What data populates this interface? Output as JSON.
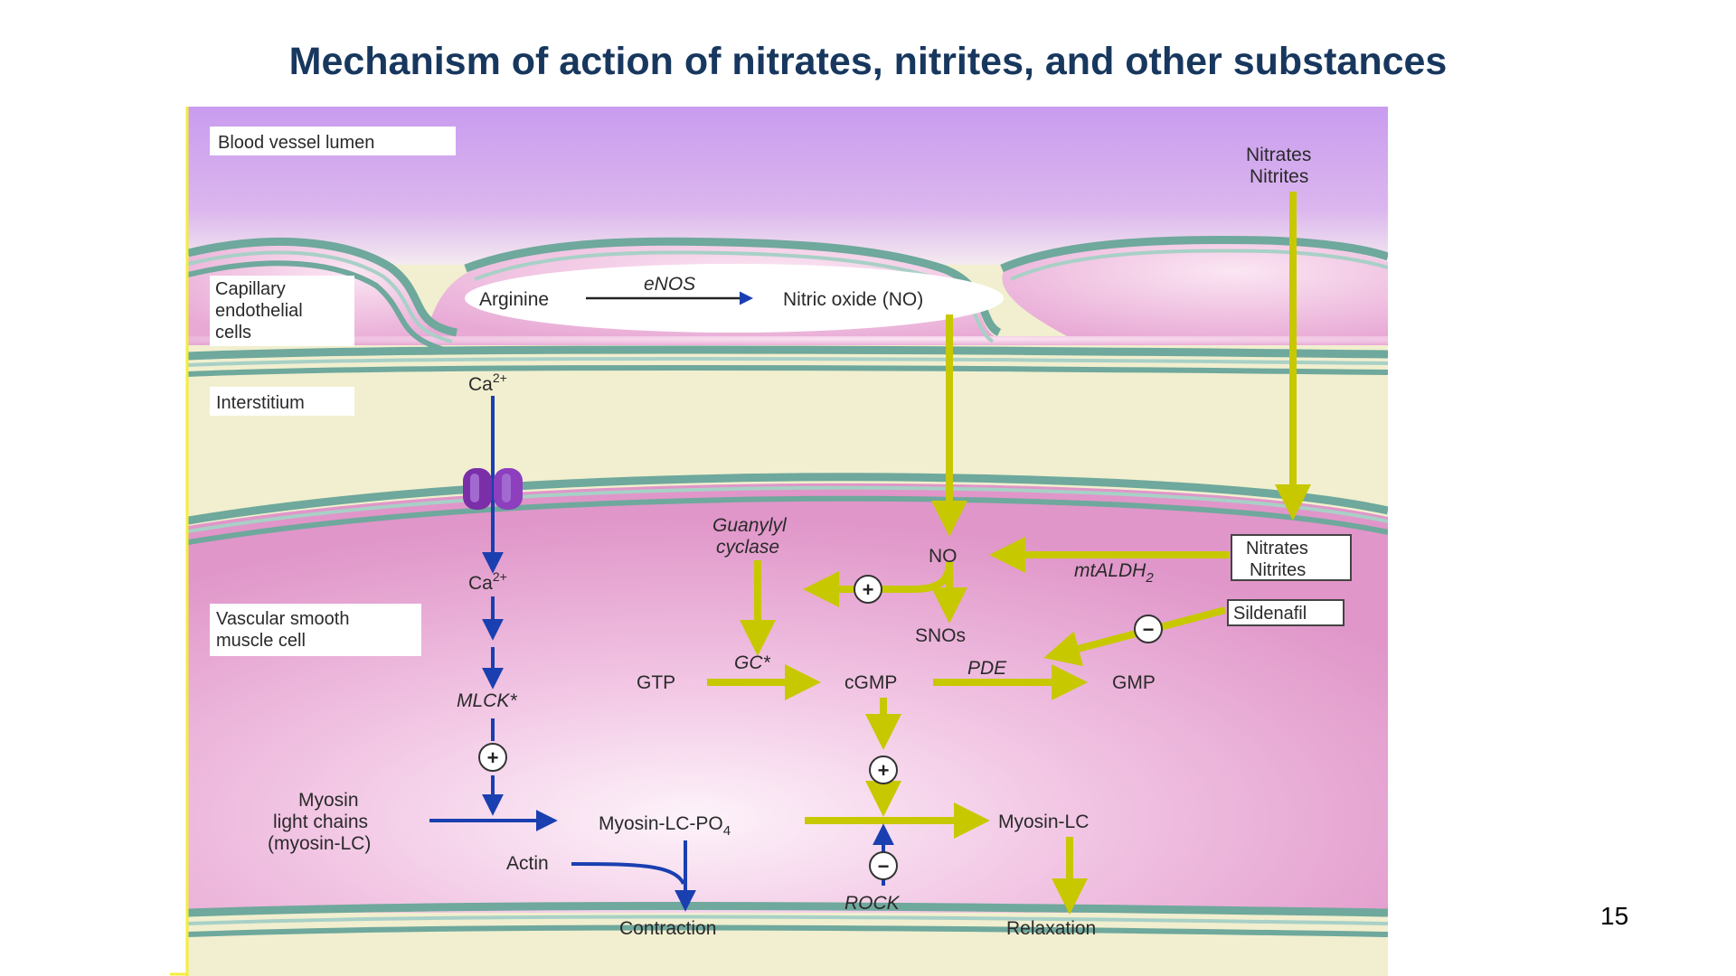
{
  "slide": {
    "title": "Mechanism of action of nitrates, nitrites, and other substances",
    "page_number": "15"
  },
  "regions": {
    "lumen": "Blood vessel lumen",
    "endothelial_1": "Capillary",
    "endothelial_2": "endothelial",
    "endothelial_3": "cells",
    "interstitium": "Interstitium",
    "vsmc_1": "Vascular smooth",
    "vsmc_2": "muscle cell"
  },
  "labels": {
    "arginine": "Arginine",
    "enos": "eNOS",
    "nitric_oxide": "Nitric oxide (NO)",
    "nitrates_top": "Nitrates",
    "nitrites_top": "Nitrites",
    "ca_base": "Ca",
    "ca_charge": "2+",
    "no": "NO",
    "mtaldh_base": "mtALDH",
    "mtaldh_sub": "2",
    "nitrates_box": "Nitrates",
    "nitrites_box": "Nitrites",
    "sildenafil": "Sildenafil",
    "guanylyl": "Guanylyl",
    "cyclase": "cyclase",
    "snos": "SNOs",
    "gtp": "GTP",
    "gc_star": "GC*",
    "cgmp": "cGMP",
    "pde": "PDE",
    "gmp": "GMP",
    "mlck": "MLCK*",
    "myosin_1": "Myosin",
    "myosin_2": "light chains",
    "myosin_3": "(myosin-LC)",
    "myosin_lc_po4_base": "Myosin-LC-PO",
    "myosin_lc_po4_sub": "4",
    "myosin_lc": "Myosin-LC",
    "actin": "Actin",
    "rock": "ROCK",
    "contraction": "Contraction",
    "relaxation": "Relaxation"
  },
  "symbols": {
    "plus": "+",
    "minus": "−"
  },
  "colors": {
    "title": "#17375e",
    "lumen": "#cc99ee",
    "cell_pink": "#e6a6d4",
    "interstitium": "#f1efcf",
    "membrane": "#6fa89c",
    "arrow_yellow": "#c8c800",
    "arrow_blue": "#1a3fb0",
    "channel": "#7a2ea8"
  }
}
